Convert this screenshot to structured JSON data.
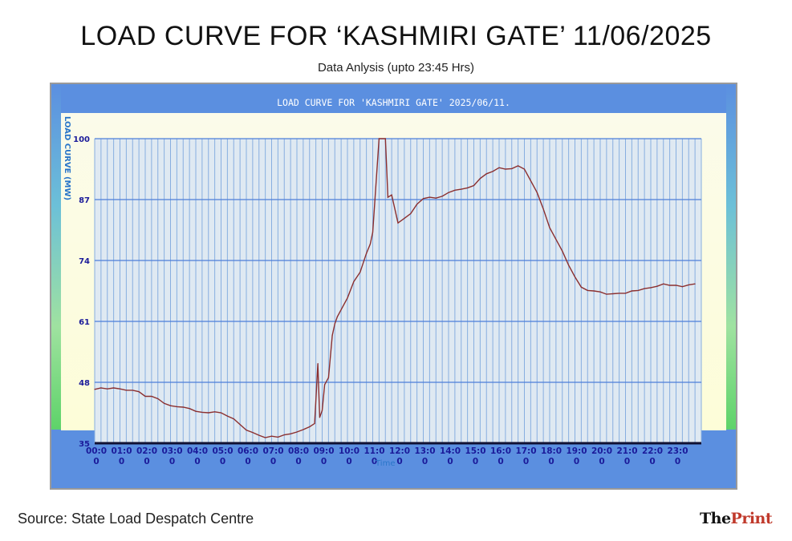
{
  "header": {
    "title": "LOAD CURVE FOR ‘KASHMIRI GATE’ 11/06/2025",
    "subtitle": "Data Anlysis (upto 23:45 Hrs)"
  },
  "footer": {
    "source": "Source: State Load Despatch Centre",
    "logo_the": "The",
    "logo_print": "Print"
  },
  "colors": {
    "line": "#8b2f2f",
    "grid_vertical": "#87aee0",
    "grid_horizontal": "#4d7fd9",
    "tick_label": "#1b1b9a",
    "panel": "#5b8fe0"
  },
  "chart_data": {
    "type": "line",
    "title": "LOAD CURVE FOR 'KASHMIRI GATE' 2025/06/11.",
    "ylabel": "LOAD CURVE (MW)",
    "xlabel": "Time",
    "ylim": [
      35,
      100
    ],
    "xlim": [
      0,
      24
    ],
    "y_ticks": [
      "35",
      "48",
      "61",
      "74",
      "87",
      "100"
    ],
    "x_ticks": [
      {
        "line1": "00:0",
        "line2": "0"
      },
      {
        "line1": "01:0",
        "line2": "0"
      },
      {
        "line1": "02:0",
        "line2": "0"
      },
      {
        "line1": "03:0",
        "line2": "0"
      },
      {
        "line1": "04:0",
        "line2": "0"
      },
      {
        "line1": "05:0",
        "line2": "0"
      },
      {
        "line1": "06:0",
        "line2": "0"
      },
      {
        "line1": "07:0",
        "line2": "0"
      },
      {
        "line1": "08:0",
        "line2": "0"
      },
      {
        "line1": "09:0",
        "line2": "0"
      },
      {
        "line1": "10:0",
        "line2": "0"
      },
      {
        "line1": "11:0",
        "line2": "0"
      },
      {
        "line1": "12:0",
        "line2": "0"
      },
      {
        "line1": "13:0",
        "line2": "0"
      },
      {
        "line1": "14:0",
        "line2": "0"
      },
      {
        "line1": "15:0",
        "line2": "0"
      },
      {
        "line1": "16:0",
        "line2": "0"
      },
      {
        "line1": "17:0",
        "line2": "0"
      },
      {
        "line1": "18:0",
        "line2": "0"
      },
      {
        "line1": "19:0",
        "line2": "0"
      },
      {
        "line1": "20:0",
        "line2": "0"
      },
      {
        "line1": "21:0",
        "line2": "0"
      },
      {
        "line1": "22:0",
        "line2": "0"
      },
      {
        "line1": "23:0",
        "line2": "0"
      }
    ],
    "grid": true,
    "series": [
      {
        "x": [
          0.0,
          0.25,
          0.5,
          0.75,
          1.0,
          1.25,
          1.5,
          1.75,
          2.0,
          2.25,
          2.5,
          2.75,
          3.0,
          3.25,
          3.5,
          3.75,
          4.0,
          4.25,
          4.5,
          4.75,
          5.0,
          5.25,
          5.5,
          5.75,
          6.0,
          6.25,
          6.5,
          6.75,
          7.0,
          7.25,
          7.5,
          7.75,
          8.0,
          8.25,
          8.5,
          8.7,
          8.83,
          8.9,
          9.0,
          9.1,
          9.25,
          9.4,
          9.5,
          9.6,
          9.75,
          10.0,
          10.25,
          10.5,
          10.75,
          10.9,
          11.0,
          11.25,
          11.5,
          11.6,
          11.75,
          12.0,
          12.25,
          12.5,
          12.75,
          13.0,
          13.25,
          13.5,
          13.75,
          14.0,
          14.25,
          14.5,
          14.75,
          15.0,
          15.25,
          15.5,
          15.75,
          16.0,
          16.25,
          16.5,
          16.75,
          17.0,
          17.25,
          17.5,
          17.75,
          18.0,
          18.25,
          18.5,
          18.75,
          19.0,
          19.25,
          19.5,
          19.75,
          20.0,
          20.25,
          20.5,
          20.75,
          21.0,
          21.25,
          21.5,
          21.75,
          22.0,
          22.25,
          22.5,
          22.75,
          23.0,
          23.25,
          23.5,
          23.75
        ],
        "values": [
          46.5,
          46.8,
          46.6,
          46.8,
          46.6,
          46.3,
          46.3,
          46.0,
          45.0,
          45.0,
          44.5,
          43.5,
          43.0,
          42.8,
          42.7,
          42.4,
          41.8,
          41.6,
          41.5,
          41.7,
          41.5,
          40.8,
          40.2,
          39.0,
          37.8,
          37.3,
          36.7,
          36.2,
          36.5,
          36.3,
          36.8,
          37.0,
          37.4,
          37.9,
          38.5,
          39.2,
          52.0,
          40.5,
          42.0,
          47.5,
          49.0,
          58.0,
          60.5,
          62.0,
          63.5,
          66.0,
          69.5,
          71.5,
          75.5,
          77.5,
          80.0,
          100.0,
          100.0,
          87.5,
          88.0,
          82.0,
          83.0,
          84.0,
          86.0,
          87.2,
          87.5,
          87.3,
          87.7,
          88.5,
          89.0,
          89.2,
          89.5,
          90.0,
          91.5,
          92.5,
          93.0,
          93.8,
          93.5,
          93.6,
          94.2,
          93.5,
          91.0,
          88.5,
          85.0,
          81.0,
          78.5,
          76.0,
          73.0,
          70.5,
          68.3,
          67.6,
          67.5,
          67.3,
          66.8,
          66.9,
          67.0,
          67.0,
          67.5,
          67.6,
          68.0,
          68.2,
          68.5,
          69.0,
          68.7,
          68.7,
          68.4,
          68.8,
          69.0
        ]
      }
    ]
  }
}
